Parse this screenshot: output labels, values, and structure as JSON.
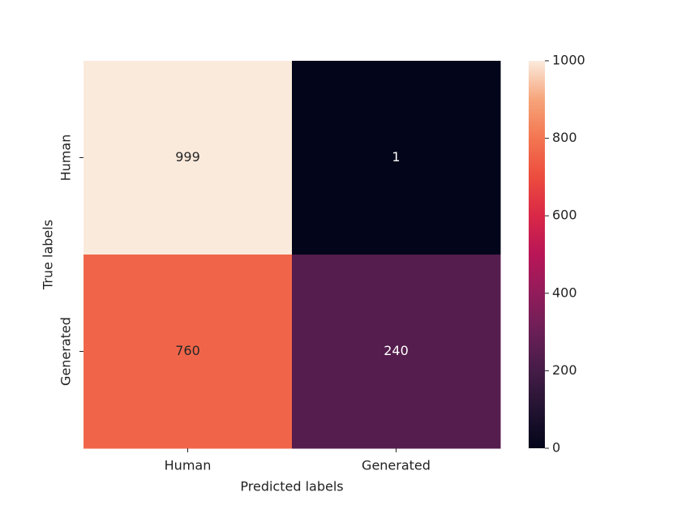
{
  "chart_data": {
    "type": "heatmap",
    "xlabel": "Predicted labels",
    "ylabel": "True labels",
    "x_categories": [
      "Human",
      "Generated"
    ],
    "y_categories": [
      "Human",
      "Generated"
    ],
    "values": [
      [
        999,
        1
      ],
      [
        760,
        240
      ]
    ],
    "clim": [
      0,
      1000
    ],
    "cticks": [
      0,
      200,
      400,
      600,
      800,
      1000
    ],
    "colormap": [
      "#03051a",
      "#221331",
      "#451c47",
      "#6a1f56",
      "#921c5b",
      "#b91657",
      "#d92847",
      "#ec4c3e",
      "#f37651",
      "#f6a47a",
      "#faebdd"
    ]
  }
}
